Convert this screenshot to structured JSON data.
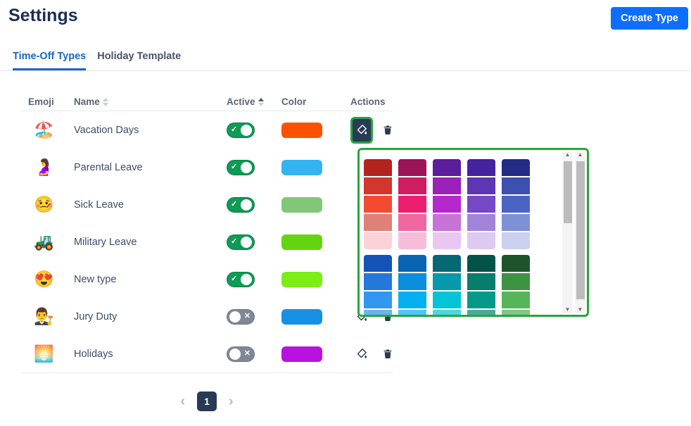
{
  "page": {
    "title": "Settings"
  },
  "header": {
    "create_button": "Create Type"
  },
  "tabs": [
    {
      "label": "Time-Off Types",
      "active": true
    },
    {
      "label": "Holiday Template",
      "active": false
    }
  ],
  "table": {
    "columns": [
      "Emoji",
      "Name",
      "Active",
      "Color",
      "Actions"
    ],
    "sort": {
      "name": "unsorted",
      "active": "asc"
    },
    "rows": [
      {
        "emoji": "🏖️",
        "name": "Vacation Days",
        "active": true,
        "color": "#fc5200",
        "picker_open": true
      },
      {
        "emoji": "🤰",
        "name": "Parental Leave",
        "active": true,
        "color": "#33b4f0"
      },
      {
        "emoji": "🤒",
        "name": "Sick Leave",
        "active": true,
        "color": "#80c878"
      },
      {
        "emoji": "🚜",
        "name": "Military Leave",
        "active": true,
        "color": "#64d411"
      },
      {
        "emoji": "😍",
        "name": "New type",
        "active": true,
        "color": "#7bee17"
      },
      {
        "emoji": "👨‍⚖️",
        "name": "Jury Duty",
        "active": false,
        "color": "#1791e6"
      },
      {
        "emoji": "🌅",
        "name": "Holidays",
        "active": false,
        "color": "#b912e0"
      }
    ]
  },
  "color_picker": {
    "highlight_color": "#26a73c",
    "groups": [
      {
        "columns": [
          [
            "#b32421",
            "#d2362c",
            "#f44a31",
            "#e08077",
            "#fbd3d6"
          ],
          [
            "#9c1458",
            "#ce1d61",
            "#ee1e6e",
            "#f0679f",
            "#f6bdd9"
          ],
          [
            "#5c1d9d",
            "#9a22ba",
            "#b428cd",
            "#c673d5",
            "#e9c7f2"
          ],
          [
            "#45229e",
            "#5d35b5",
            "#7548c7",
            "#a184d9",
            "#dccaf0"
          ],
          [
            "#242b85",
            "#3c50b0",
            "#4b63c5",
            "#7d91d7",
            "#cad0ed"
          ]
        ]
      },
      {
        "columns": [
          [
            "#1454b8",
            "#2478dc",
            "#3397f2",
            "#6cb2f0"
          ],
          [
            "#0a64b4",
            "#0b8edd",
            "#04b0ef",
            "#52c5f5"
          ],
          [
            "#056874",
            "#049aaa",
            "#04c4d8",
            "#4cd6e2"
          ],
          [
            "#045348",
            "#067e6e",
            "#05998a",
            "#4ba999"
          ],
          [
            "#1e5429",
            "#3d9342",
            "#55b559",
            "#80c784"
          ]
        ]
      }
    ]
  },
  "pagination": {
    "current": "1"
  },
  "icons": {
    "check": "✓",
    "cross": "✕",
    "chevron_left": "‹",
    "chevron_right": "›",
    "scroll_up": "▲",
    "scroll_down": "▼",
    "paint_bucket": "paint-bucket-icon",
    "trash": "trash-icon",
    "sort": "sort-arrows-icon"
  },
  "colors": {
    "accent_blue": "#0d6efd",
    "tab_active": "#1766c2",
    "toggle_on": "#0d9b55",
    "toggle_off": "#7e8899",
    "navy": "#273a56",
    "picker_highlight": "#26a73c"
  }
}
